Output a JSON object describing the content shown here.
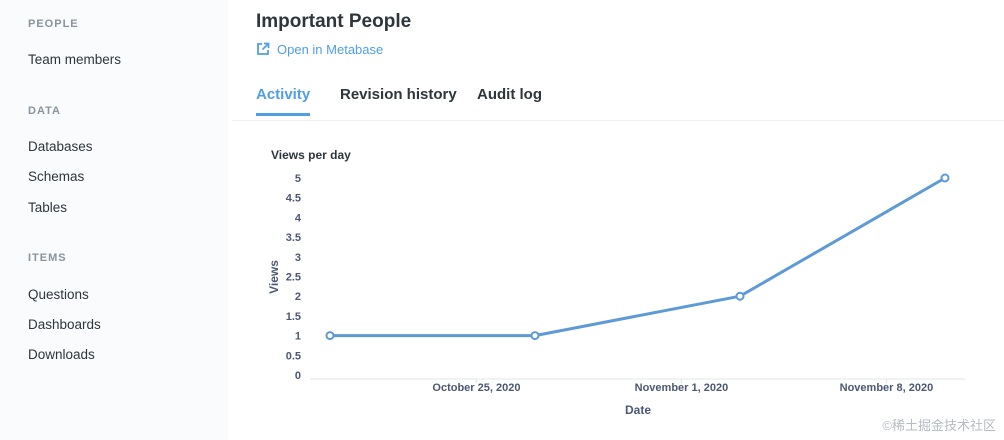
{
  "sidebar": {
    "sections": [
      {
        "heading": "PEOPLE",
        "items": [
          "Team members"
        ]
      },
      {
        "heading": "DATA",
        "items": [
          "Databases",
          "Schemas",
          "Tables"
        ]
      },
      {
        "heading": "ITEMS",
        "items": [
          "Questions",
          "Dashboards",
          "Downloads"
        ]
      }
    ]
  },
  "header": {
    "title": "Important People",
    "open_link_label": "Open in Metabase"
  },
  "tabs": [
    {
      "label": "Activity",
      "active": true
    },
    {
      "label": "Revision history",
      "active": false
    },
    {
      "label": "Audit log",
      "active": false
    }
  ],
  "colors": {
    "accent": "#509ee3",
    "line": "#5e9ad6"
  },
  "chart_label": "Views per day",
  "chart_data": {
    "type": "line",
    "title": "",
    "xlabel": "Date",
    "ylabel": "Views",
    "x_tick_labels": [
      "October 25, 2020",
      "November 1, 2020",
      "November 8, 2020"
    ],
    "x": [
      "2020-10-20",
      "2020-10-27",
      "2020-11-03",
      "2020-11-10"
    ],
    "series": [
      {
        "values": [
          1,
          1,
          2,
          5
        ]
      }
    ],
    "y_ticks": [
      0,
      0.5,
      1,
      1.5,
      2,
      2.5,
      3,
      3.5,
      4,
      4.5,
      5
    ],
    "ylim": [
      0,
      5
    ],
    "grid": false,
    "legend": "none"
  },
  "watermark": "©稀土掘金技术社区"
}
